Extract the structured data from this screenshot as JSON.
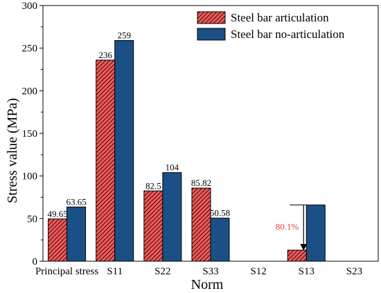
{
  "chart_data": {
    "type": "bar",
    "title": "",
    "xlabel": "Norm",
    "ylabel": "Stress value (MPa)",
    "ylim": [
      0,
      300
    ],
    "yticks": [
      0,
      50,
      100,
      150,
      200,
      250,
      300
    ],
    "categories": [
      "Principal stress",
      "S11",
      "S22",
      "S33",
      "S12",
      "S13",
      "S23"
    ],
    "series": [
      {
        "name": "Steel bar articulation",
        "values": [
          49.65,
          236,
          82.5,
          85.82,
          null,
          13,
          null
        ],
        "labels": [
          "49.65",
          "236",
          "82.5",
          "85.82",
          "",
          "",
          ""
        ],
        "color": "#f25a5a",
        "pattern": "diagonal-hatch"
      },
      {
        "name": "Steel bar no-articulation",
        "values": [
          63.65,
          259,
          104,
          50.58,
          null,
          66,
          null
        ],
        "labels": [
          "63.65",
          "259",
          "104",
          "50.58",
          "",
          "",
          ""
        ],
        "color": "#1a5086",
        "pattern": "solid"
      }
    ],
    "annotations": [
      {
        "text": "80.1%",
        "category": "S13",
        "from": 66,
        "to": 13,
        "color": "#e8413c"
      }
    ],
    "legend_position": "top-right",
    "grid": false
  }
}
